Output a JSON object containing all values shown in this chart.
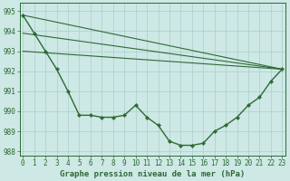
{
  "title": "Graphe pression niveau de la mer (hPa)",
  "background_color": "#cde8e5",
  "grid_color": "#aacfcb",
  "line_color": "#2d6a35",
  "ylim": [
    987.8,
    995.4
  ],
  "xlim": [
    -0.3,
    23.3
  ],
  "yticks": [
    988,
    989,
    990,
    991,
    992,
    993,
    994,
    995
  ],
  "xticks": [
    0,
    1,
    2,
    3,
    4,
    5,
    6,
    7,
    8,
    9,
    10,
    11,
    12,
    13,
    14,
    15,
    16,
    17,
    18,
    19,
    20,
    21,
    22,
    23
  ],
  "main_line": {
    "x": [
      0,
      1,
      2,
      3,
      4,
      5,
      6,
      7,
      8,
      9,
      10,
      11,
      12,
      13,
      14,
      15,
      16,
      17,
      18,
      19,
      20,
      21,
      22,
      23
    ],
    "y": [
      994.8,
      993.9,
      993.0,
      992.1,
      991.0,
      989.8,
      989.8,
      989.7,
      989.7,
      989.8,
      990.3,
      989.7,
      989.3,
      988.5,
      988.3,
      988.3,
      988.4,
      989.0,
      989.3,
      989.7,
      990.3,
      990.7,
      991.5,
      992.1
    ]
  },
  "envelope_lines": [
    {
      "x": [
        0,
        23
      ],
      "y": [
        994.8,
        992.1
      ]
    },
    {
      "x": [
        0,
        23
      ],
      "y": [
        993.9,
        992.1
      ]
    },
    {
      "x": [
        0,
        23
      ],
      "y": [
        993.0,
        992.1
      ]
    }
  ],
  "tick_fontsize": 5.5,
  "title_fontsize": 6.5,
  "marker": "D",
  "markersize": 2.2,
  "linewidth": 1.0,
  "envelope_linewidth": 0.8
}
